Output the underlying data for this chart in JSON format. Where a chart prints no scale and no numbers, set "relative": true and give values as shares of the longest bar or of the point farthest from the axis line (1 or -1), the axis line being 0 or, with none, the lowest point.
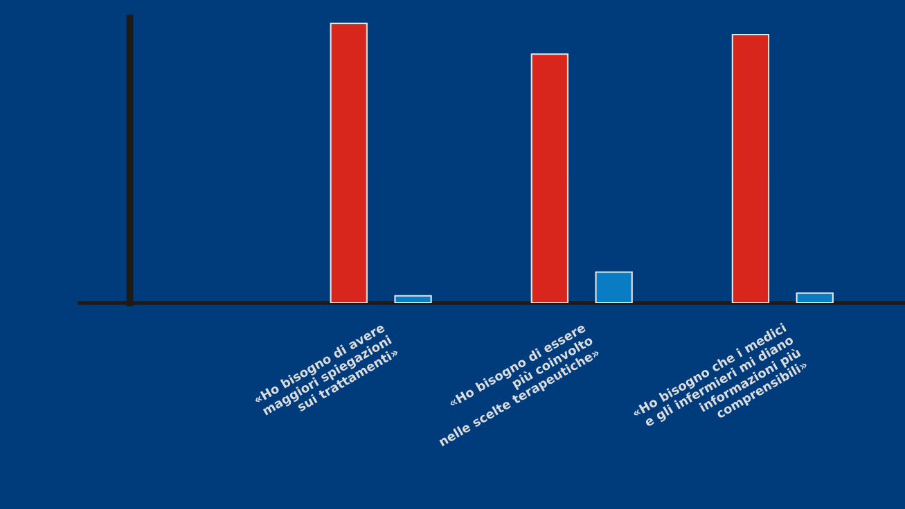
{
  "chart_data": {
    "type": "bar",
    "relative": true,
    "categories": [
      "«Ho bisogno di avere\nmaggiori spiegazioni\nsui trattamenti»",
      "«Ho bisogno di essere\npiù coinvolto\nnelle scelte terapeutiche»",
      "«Ho bisogno che i medici\ne gli infermieri mi diano\ninformazioni più\ncomprensibili»"
    ],
    "series": [
      {
        "color": "#d9261c",
        "values": [
          1,
          0.89,
          0.96
        ]
      },
      {
        "color": "#0a7cc4",
        "values": [
          0.025,
          0.11,
          0.035
        ]
      }
    ],
    "grid": false,
    "legend": false
  }
}
